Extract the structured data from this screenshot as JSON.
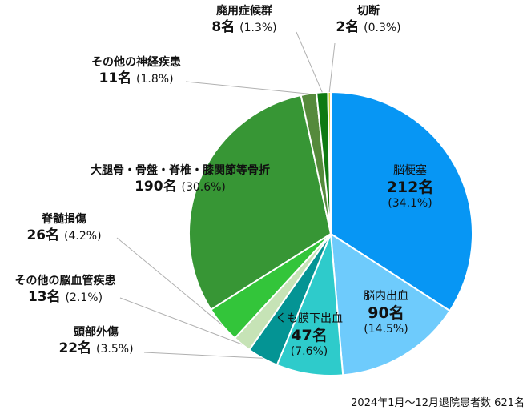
{
  "chart_data": {
    "type": "pie",
    "total_note": "2024年1月～12月退院患者数 621名",
    "slices": [
      {
        "name": "脳梗塞",
        "value": 212,
        "value_label": "212名",
        "percent_label": "(34.1%)",
        "color": "#0796f4"
      },
      {
        "name": "脳内出血",
        "value": 90,
        "value_label": "90名",
        "percent_label": "(14.5%)",
        "color": "#6ecbfc"
      },
      {
        "name": "くも膜下出血",
        "value": 47,
        "value_label": "47名",
        "percent_label": "(7.6%)",
        "color": "#2ecbcb"
      },
      {
        "name": "頭部外傷",
        "value": 22,
        "value_label": "22名",
        "percent_label": "(3.5%)",
        "color": "#049494"
      },
      {
        "name": "その他の脳血管疾患",
        "value": 13,
        "value_label": "13名",
        "percent_label": "(2.1%)",
        "color": "#c6e3b6"
      },
      {
        "name": "脊髄損傷",
        "value": 26,
        "value_label": "26名",
        "percent_label": "(4.2%)",
        "color": "#33c53a"
      },
      {
        "name": "大腿骨・骨盤・脊椎・膝関節等骨折",
        "value": 190,
        "value_label": "190名",
        "percent_label": "(30.6%)",
        "color": "#379635"
      },
      {
        "name": "その他の神経疾患",
        "value": 11,
        "value_label": "11名",
        "percent_label": "(1.8%)",
        "color": "#558a3c"
      },
      {
        "name": "廃用症候群",
        "value": 8,
        "value_label": "8名",
        "percent_label": "(1.3%)",
        "color": "#0e7a12"
      },
      {
        "name": "切断",
        "value": 2,
        "value_label": "2名",
        "percent_label": "(0.3%)",
        "color": "#cfd33a"
      }
    ]
  }
}
